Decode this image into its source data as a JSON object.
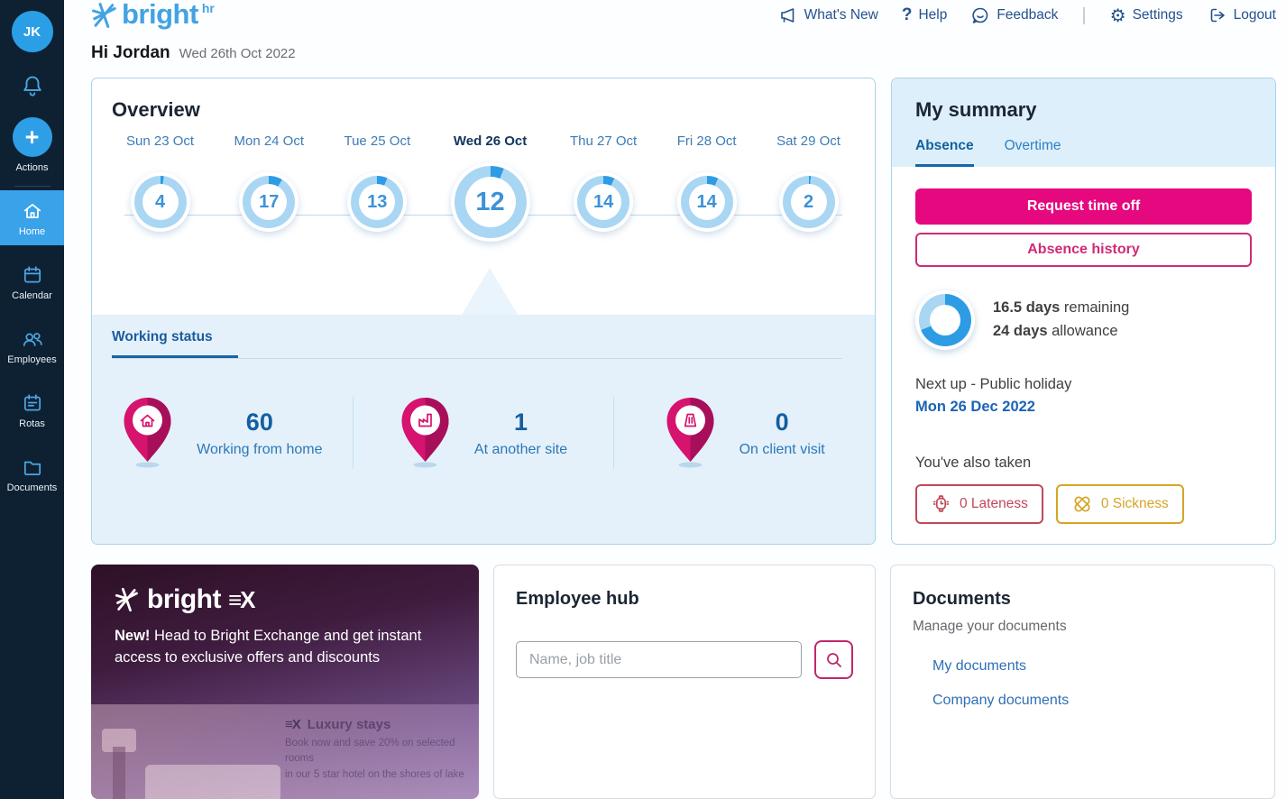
{
  "app": {
    "logo_text": "bright",
    "logo_suffix": "hr"
  },
  "colors": {
    "accent_blue": "#3aa2e9",
    "ring_light": "#a9d6f3",
    "ring_dark": "#2d9ce4",
    "pink": "#e5087e",
    "pin_pink": "#d6136e",
    "lateness_red": "#c0485a",
    "sickness_gold": "#d4a526",
    "link_blue": "#2f6fb7",
    "nav_blue": "#24528f"
  },
  "header": {
    "nav": [
      {
        "icon": "megaphone",
        "label": "What's New",
        "divider_before": false
      },
      {
        "icon": "help",
        "label": "Help",
        "divider_before": false
      },
      {
        "icon": "feedback",
        "label": "Feedback",
        "divider_before": false
      },
      {
        "icon": "gear",
        "label": "Settings",
        "divider_before": true
      },
      {
        "icon": "logout",
        "label": "Logout",
        "divider_before": false
      }
    ]
  },
  "greeting": {
    "title": "Hi Jordan",
    "date": "Wed 26th Oct 2022"
  },
  "sidebar": {
    "avatar_initials": "JK",
    "actions_label": "Actions",
    "items": [
      {
        "icon": "home",
        "label": "Home",
        "active": true
      },
      {
        "icon": "calendar",
        "label": "Calendar",
        "active": false
      },
      {
        "icon": "employees",
        "label": "Employees",
        "active": false
      },
      {
        "icon": "rotas",
        "label": "Rotas",
        "active": false
      },
      {
        "icon": "documents",
        "label": "Documents",
        "active": false
      }
    ]
  },
  "overview": {
    "title": "Overview",
    "days": [
      {
        "label": "Sun 23 Oct",
        "value": 4,
        "selected": false
      },
      {
        "label": "Mon 24 Oct",
        "value": 17,
        "selected": false
      },
      {
        "label": "Tue 25 Oct",
        "value": 13,
        "selected": false
      },
      {
        "label": "Wed 26 Oct",
        "value": 12,
        "selected": true
      },
      {
        "label": "Thu 27 Oct",
        "value": 14,
        "selected": false
      },
      {
        "label": "Fri 28 Oct",
        "value": 14,
        "selected": false
      },
      {
        "label": "Sat 29 Oct",
        "value": 2,
        "selected": false
      }
    ],
    "tab_label": "Working status",
    "stats": [
      {
        "icon": "pin-home",
        "value": "60",
        "label": "Working from home"
      },
      {
        "icon": "pin-factory",
        "value": "1",
        "label": "At another site"
      },
      {
        "icon": "pin-client",
        "value": "0",
        "label": "On client visit"
      }
    ]
  },
  "summary": {
    "title": "My summary",
    "tabs": [
      {
        "label": "Absence",
        "active": true
      },
      {
        "label": "Overtime",
        "active": false
      }
    ],
    "primary_button": "Request time off",
    "secondary_button": "Absence history",
    "donut": {
      "remaining": 16.5,
      "allowance": 24
    },
    "remaining_strong": "16.5 days",
    "remaining_rest": " remaining",
    "allowance_strong": "24 days",
    "allowance_rest": " allowance",
    "next_up": "Next up - Public holiday",
    "next_date": "Mon 26 Dec 2022",
    "also_taken": "You've also taken",
    "badges": [
      {
        "icon": "watch",
        "label": "0 Lateness",
        "color": "red"
      },
      {
        "icon": "plaster",
        "label": "0 Sickness",
        "color": "yellow"
      }
    ]
  },
  "promo": {
    "logo_text": "bright",
    "logo_ex": "≡X",
    "text_strong": "New!",
    "text_rest": " Head to Bright Exchange and get instant access to exclusive offers and discounts",
    "shot_title": "Luxury stays",
    "shot_ex": "≡X",
    "shot_line1": "Book now and save 20% on selected rooms",
    "shot_line2": "in our 5 star hotel on the shores of lake"
  },
  "employee_hub": {
    "title": "Employee hub",
    "search_placeholder": "Name, job title"
  },
  "documents": {
    "title": "Documents",
    "subtitle": "Manage your documents",
    "links": [
      "My documents",
      "Company documents"
    ]
  }
}
